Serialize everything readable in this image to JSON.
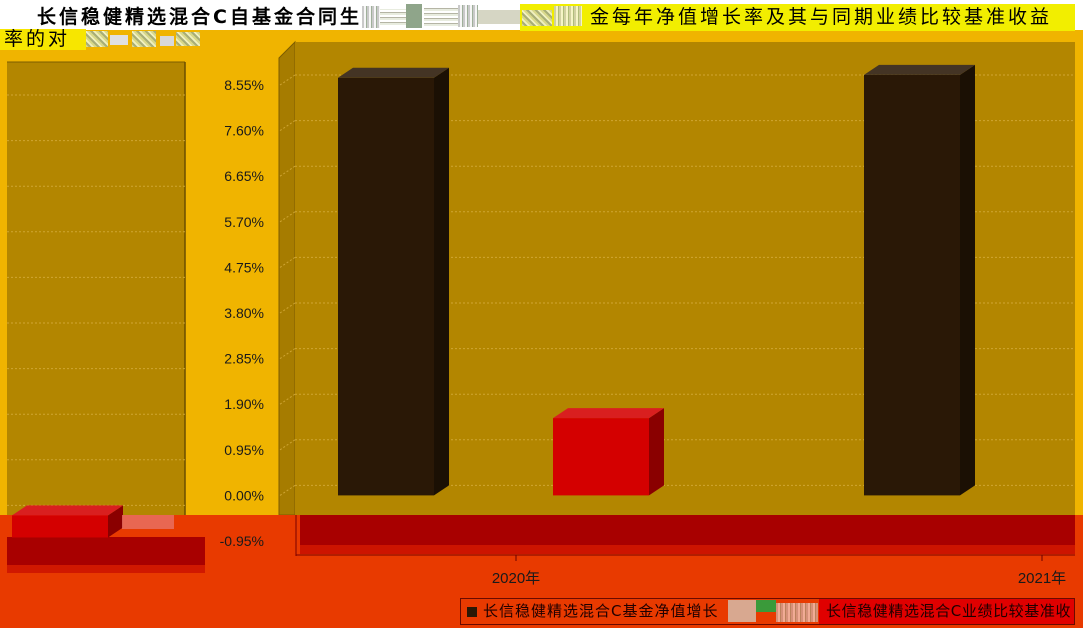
{
  "chart_data": {
    "type": "bar",
    "style": "3d",
    "title_fragments": {
      "line1_left": "长信稳健精选混合C自基金合同生",
      "line1_right": "金每年净值增长率及其与同期业绩比较基准收益",
      "line2": "率的对"
    },
    "categories": [
      "2020年",
      "2021年"
    ],
    "series": [
      {
        "name": "长信稳健精选混合C基金净值增长",
        "values": [
          8.7,
          8.76
        ],
        "color": "#2A1806"
      },
      {
        "name": "长信稳健精选混合C业绩比较基准收",
        "values": [
          1.61,
          -0.46
        ],
        "color": "#D40000"
      }
    ],
    "y_ticks": [
      8.55,
      7.6,
      6.65,
      5.7,
      4.75,
      3.8,
      2.85,
      1.9,
      0.95,
      0.0,
      -0.95
    ],
    "y_tick_labels": [
      "8.55%",
      "7.60%",
      "6.65%",
      "5.70%",
      "4.75%",
      "3.80%",
      "2.85%",
      "1.90%",
      "0.95%",
      "0.00%",
      "-0.95%"
    ],
    "ylim": [
      -0.95,
      8.55
    ],
    "grid": true,
    "legend_position": "bottom"
  }
}
